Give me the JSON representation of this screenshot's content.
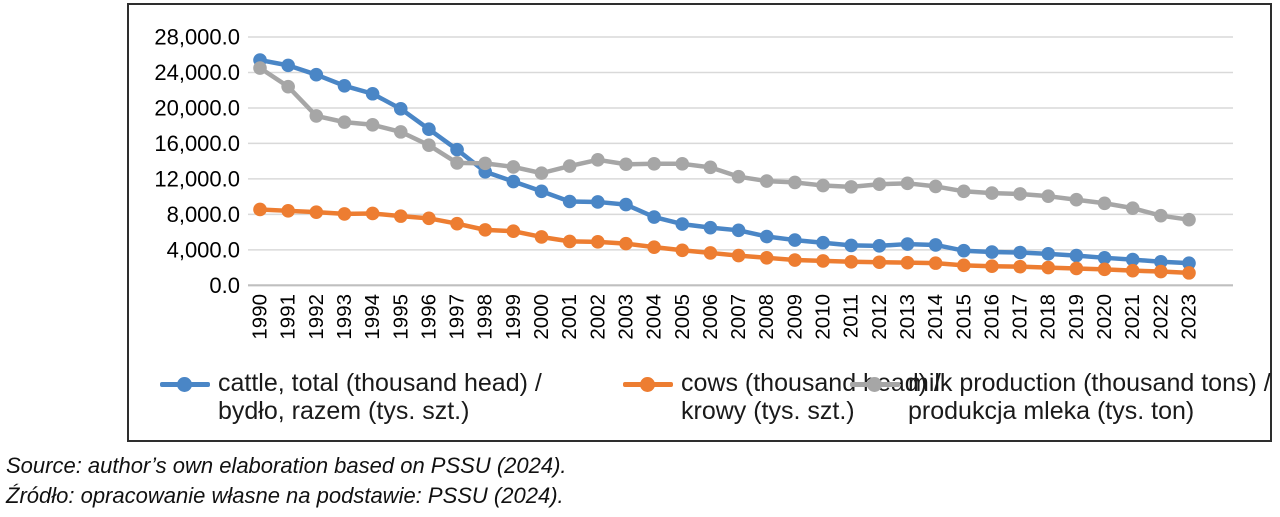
{
  "chart_data": {
    "type": "line",
    "title": "",
    "xlabel": "",
    "ylabel": "",
    "x": [
      "1990",
      "1991",
      "1992",
      "1993",
      "1994",
      "1995",
      "1996",
      "1997",
      "1998",
      "1999",
      "2000",
      "2001",
      "2002",
      "2003",
      "2004",
      "2005",
      "2006",
      "2007",
      "2008",
      "2009",
      "2010",
      "2011",
      "2012",
      "2013",
      "2014",
      "2015",
      "2016",
      "2017",
      "2018",
      "2019",
      "2020",
      "2021",
      "2022",
      "2023"
    ],
    "series": [
      {
        "name": "cattle, total (thousand head) / bydło, razem (tys. szt.)",
        "color": "#4A86C6",
        "values": [
          25400,
          24800,
          23750,
          22500,
          21600,
          19900,
          17600,
          15300,
          12800,
          11700,
          10600,
          9450,
          9400,
          9100,
          7700,
          6900,
          6500,
          6200,
          5500,
          5100,
          4800,
          4500,
          4450,
          4650,
          4550,
          3900,
          3750,
          3700,
          3550,
          3350,
          3100,
          2900,
          2650,
          2500
        ]
      },
      {
        "name": "cows (thousand head) / krowy (tys. szt.)",
        "color": "#ED7D31",
        "values": [
          8550,
          8400,
          8250,
          8050,
          8100,
          7800,
          7550,
          6950,
          6250,
          6100,
          5450,
          4950,
          4900,
          4700,
          4300,
          3950,
          3650,
          3350,
          3100,
          2850,
          2750,
          2650,
          2600,
          2550,
          2500,
          2250,
          2150,
          2100,
          2000,
          1900,
          1800,
          1650,
          1550,
          1400
        ]
      },
      {
        "name": "milk production (thousand tons) / produkcja mleka (tys. ton)",
        "color": "#A6A6A6",
        "values": [
          24500,
          22400,
          19100,
          18400,
          18100,
          17300,
          15800,
          13800,
          13750,
          13350,
          12650,
          13450,
          14150,
          13650,
          13700,
          13700,
          13300,
          12250,
          11750,
          11600,
          11250,
          11100,
          11400,
          11500,
          11150,
          10600,
          10400,
          10300,
          10050,
          9650,
          9250,
          8700,
          7850,
          7400
        ]
      }
    ],
    "ylim": [
      0,
      28000
    ],
    "ytick_step": 4000,
    "ytick_labels": [
      "0.0",
      "4,000.0",
      "8,000.0",
      "12,000.0",
      "16,000.0",
      "20,000.0",
      "24,000.0",
      "28,000.0"
    ],
    "grid": "horizontal",
    "legend_position": "bottom"
  },
  "legend": {
    "items": [
      {
        "line1": "cattle, total (thousand head) /",
        "line2": "bydło, razem (tys. szt.)",
        "color": "#4A86C6"
      },
      {
        "line1": "cows (thousand head) /",
        "line2": "krowy (tys. szt.)",
        "color": "#ED7D31"
      },
      {
        "line1": "milk production (thousand tons) /",
        "line2": "produkcja mleka (tys. ton)",
        "color": "#A6A6A6"
      }
    ]
  },
  "source": {
    "line1": "Source: author’s own elaboration based on PSSU (2024).",
    "line2": "Źródło: opracowanie własne na podstawie: PSSU (2024)."
  },
  "colors": {
    "cattle_series": "#4A86C6",
    "cows_series": "#ED7D31",
    "milk_series": "#A6A6A6",
    "gridline": "#D9D9D9",
    "axis_line": "#BFBFBF",
    "frame_border": "#2E2E2E",
    "text": "#000000"
  }
}
